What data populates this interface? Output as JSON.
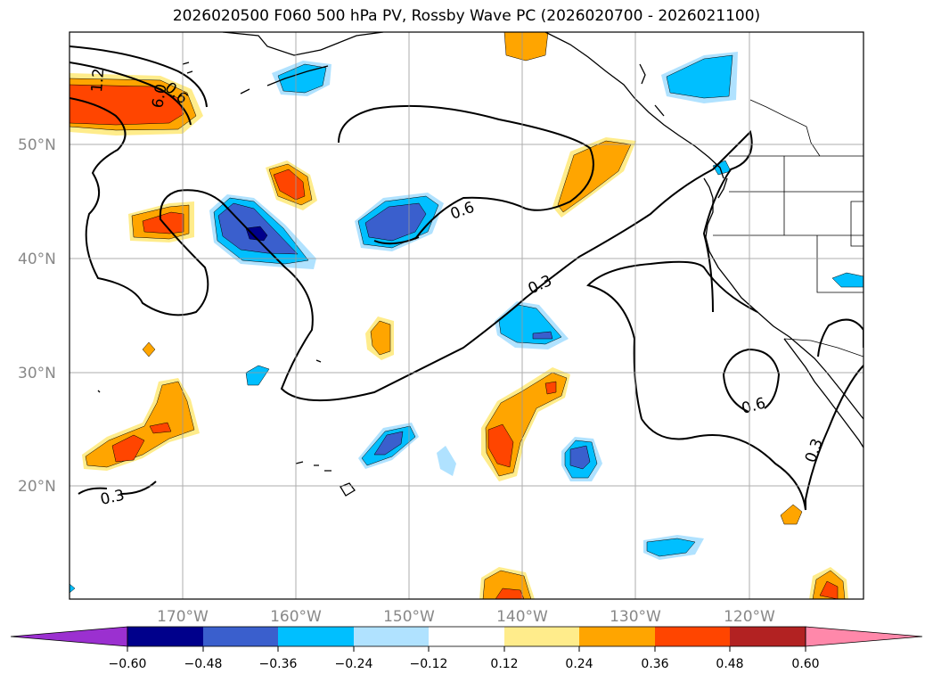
{
  "title": "2026020500 F060 500 hPa PV, Rossby Wave PC (2026020700 - 2026021100)",
  "lat_labels": [
    "50°N",
    "40°N",
    "30°N",
    "20°N"
  ],
  "lon_labels": [
    "170°W",
    "160°W",
    "150°W",
    "140°W",
    "130°W",
    "120°W"
  ],
  "contour_labels": [
    "1.2",
    "6.0",
    "0.6",
    "0.6",
    "0.3",
    "0.6",
    "0.3",
    "0.3"
  ],
  "colorbar": {
    "ticks": [
      "−0.60",
      "−0.48",
      "−0.36",
      "−0.24",
      "−0.12",
      "0.12",
      "0.24",
      "0.36",
      "0.48",
      "0.60"
    ],
    "colors": [
      "#9b30d0",
      "#00008b",
      "#3a5fcd",
      "#00bfff",
      "#b0e2ff",
      "#ffffff",
      "#ffec8b",
      "#ffa500",
      "#ff4500",
      "#b22222",
      "#ff88aa"
    ]
  },
  "fill_colors": {
    "neg1": "#b0e2ff",
    "neg2": "#00bfff",
    "neg3": "#3a5fcd",
    "neg4": "#00008b",
    "pos1": "#ffec8b",
    "pos2": "#ffa500",
    "pos3": "#ff4500",
    "pos4": "#b22222"
  }
}
